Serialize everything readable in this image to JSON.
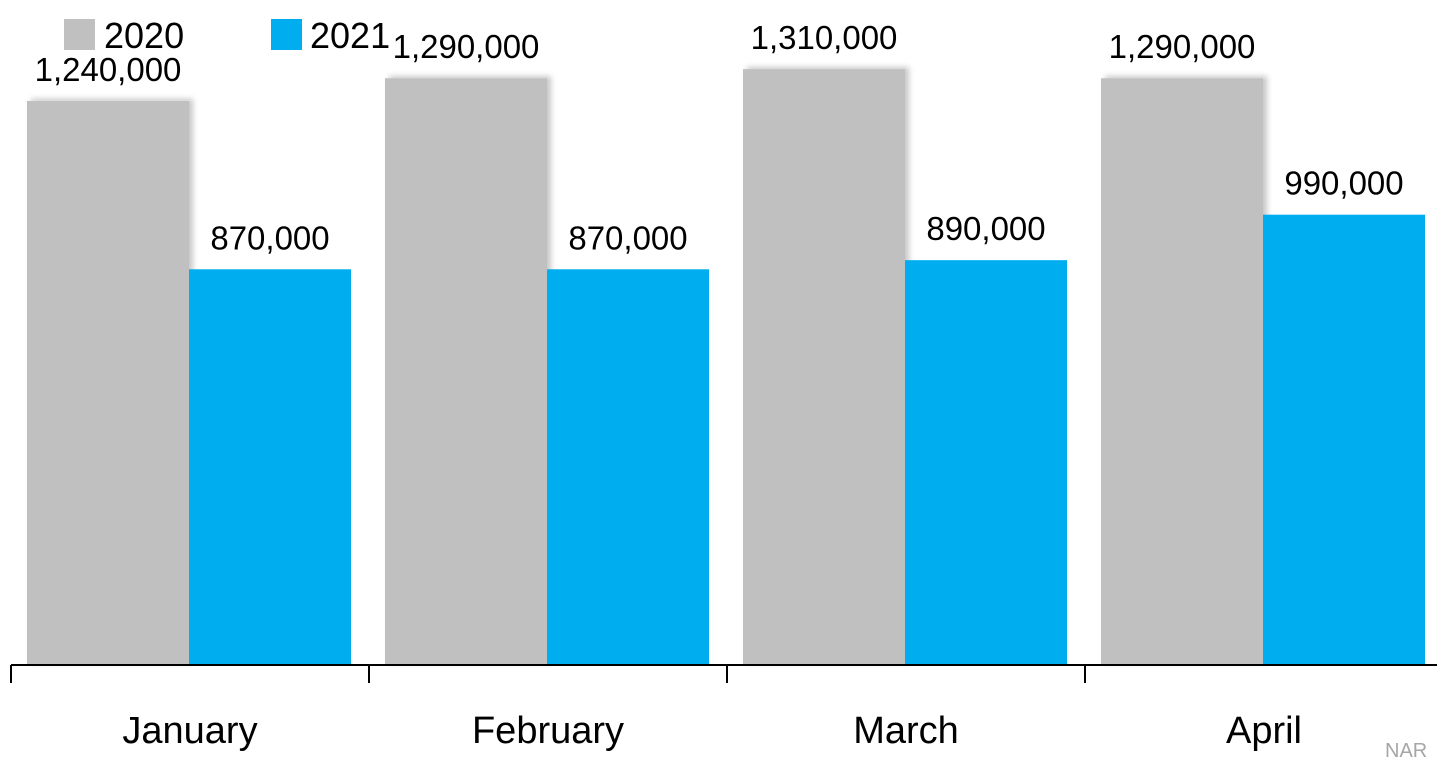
{
  "chart_data": {
    "type": "bar",
    "categories": [
      "January",
      "February",
      "March",
      "April"
    ],
    "series": [
      {
        "name": "2020",
        "color": "#c0c0c0",
        "values": [
          1240000,
          1290000,
          1310000,
          1290000
        ],
        "labels": [
          "1,240,000",
          "1,290,000",
          "1,310,000",
          "1,290,000"
        ]
      },
      {
        "name": "2021",
        "color": "#00adee",
        "values": [
          870000,
          870000,
          890000,
          990000
        ],
        "labels": [
          "870,000",
          "870,000",
          "890,000",
          "990,000"
        ]
      }
    ],
    "ylim": [
      0,
      1440000
    ],
    "grid": false,
    "legend": "top-left",
    "source": "NAR"
  }
}
